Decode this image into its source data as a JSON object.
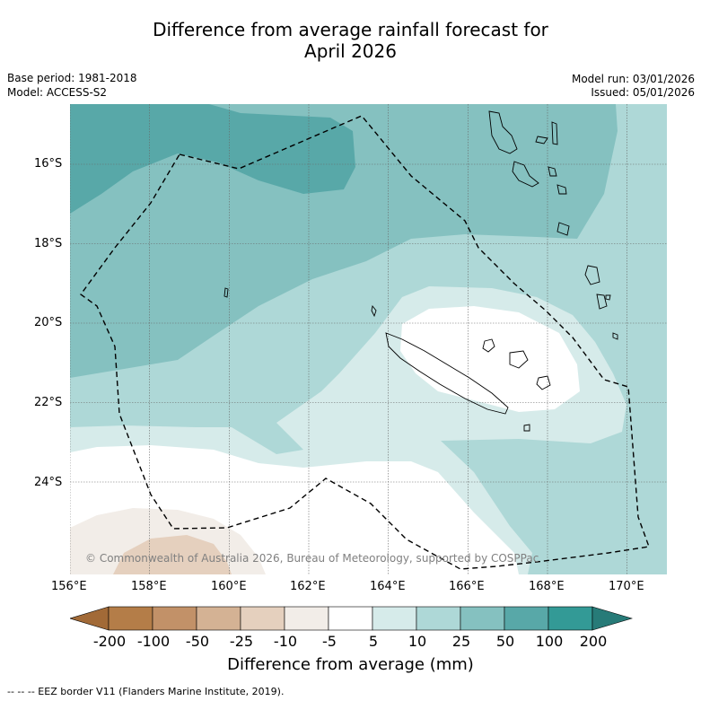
{
  "title": {
    "line1": "Difference from average rainfall forecast for",
    "line2": "April 2026"
  },
  "meta": {
    "base_period": "Base period: 1981-2018",
    "model": "Model: ACCESS-S2",
    "model_run": "Model run: 03/01/2026",
    "issued": "Issued: 05/01/2026"
  },
  "map": {
    "lat_labels": [
      "16°S",
      "18°S",
      "20°S",
      "22°S",
      "24°S"
    ],
    "lon_labels": [
      "156°E",
      "158°E",
      "160°E",
      "162°E",
      "164°E",
      "166°E",
      "168°E",
      "170°E"
    ],
    "copyright": "© Commonwealth of Australia 2026, Bureau of Meteorology, supported by COSPPac"
  },
  "colorbar": {
    "labels": [
      "-200",
      "-100",
      "-50",
      "-25",
      "-10",
      "-5",
      "5",
      "10",
      "25",
      "50",
      "100",
      "200"
    ],
    "colors": [
      "#a26a37",
      "#b47d48",
      "#c29168",
      "#d4b294",
      "#e5d0be",
      "#f2ede8",
      "#ffffff",
      "#d6ebea",
      "#aed8d7",
      "#85c1c0",
      "#58a8a8",
      "#339a96",
      "#277b78"
    ],
    "title": "Difference from average (mm)"
  },
  "footer": {
    "eez_note": "--  --  -- EEZ border V11 (Flanders Marine Institute, 2019)."
  }
}
